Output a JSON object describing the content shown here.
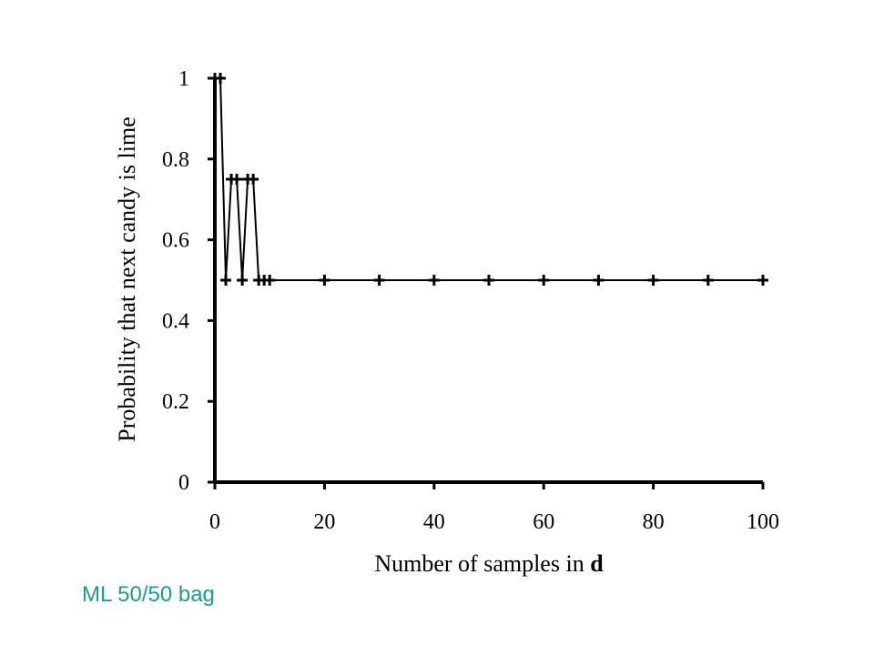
{
  "chart_data": {
    "type": "line",
    "x": [
      0,
      1,
      2,
      3,
      4,
      5,
      6,
      7,
      8,
      9,
      10,
      20,
      30,
      40,
      50,
      60,
      70,
      80,
      90,
      100
    ],
    "series": [
      {
        "values": [
          1,
          1,
          0.5,
          0.75,
          0.75,
          0.5,
          0.75,
          0.75,
          0.5,
          0.5,
          0.5,
          0.5,
          0.5,
          0.5,
          0.5,
          0.5,
          0.5,
          0.5,
          0.5,
          0.5
        ]
      }
    ],
    "xlabel_prefix": "Number of samples in ",
    "xlabel_bold": "d",
    "ylabel": "Probability that next candy is lime",
    "xlim": [
      0,
      100
    ],
    "ylim": [
      0,
      1
    ],
    "xticks": [
      0,
      20,
      40,
      60,
      80,
      100
    ],
    "yticks": [
      0,
      0.2,
      0.4,
      0.6,
      0.8,
      1
    ],
    "xtick_labels": [
      "0",
      "20",
      "40",
      "60",
      "80",
      "100"
    ],
    "ytick_labels": [
      "0",
      "0.2",
      "0.4",
      "0.6",
      "0.8",
      "1"
    ],
    "grid": false,
    "marker": "plus",
    "line_color": "#000000"
  },
  "caption": "ML 50/50 bag",
  "caption_color": "#1f9a9a"
}
